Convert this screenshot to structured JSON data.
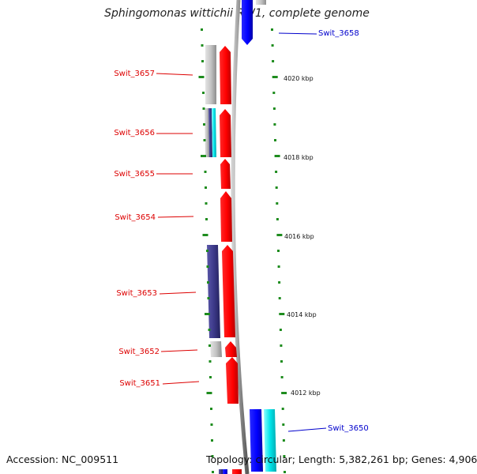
{
  "map": {
    "title": "Sphingomonas wittichii RW1, complete genome",
    "accession": "Accession: NC_009511",
    "summary": "Topology: circular; Length: 5,382,261 bp; Genes: 4,906"
  },
  "colors": {
    "forward_gene": "#ff0000",
    "reverse_gene": "#0000ff",
    "gray_feature": "#b8b8b8",
    "slate_feature": "#3d3a8a",
    "cyan_feature": "#00e5ea",
    "backbone": "#8c8c8c",
    "tick": "#1e8c1e",
    "forward_label": "#dd0000",
    "reverse_label": "#0000cc",
    "axis_label": "#111111"
  },
  "axis": {
    "ticks": [
      {
        "label": "4020 kbp"
      },
      {
        "label": "4018 kbp"
      },
      {
        "label": "4016 kbp"
      },
      {
        "label": "4014 kbp"
      },
      {
        "label": "4012 kbp"
      }
    ]
  },
  "genes": [
    {
      "label": "Swit_3658",
      "strand": "reverse"
    },
    {
      "label": "Swit_3657",
      "strand": "forward"
    },
    {
      "label": "Swit_3656",
      "strand": "forward"
    },
    {
      "label": "Swit_3655",
      "strand": "forward"
    },
    {
      "label": "Swit_3654",
      "strand": "forward"
    },
    {
      "label": "Swit_3653",
      "strand": "forward"
    },
    {
      "label": "Swit_3652",
      "strand": "forward"
    },
    {
      "label": "Swit_3651",
      "strand": "forward"
    },
    {
      "label": "Swit_3650",
      "strand": "reverse"
    }
  ]
}
